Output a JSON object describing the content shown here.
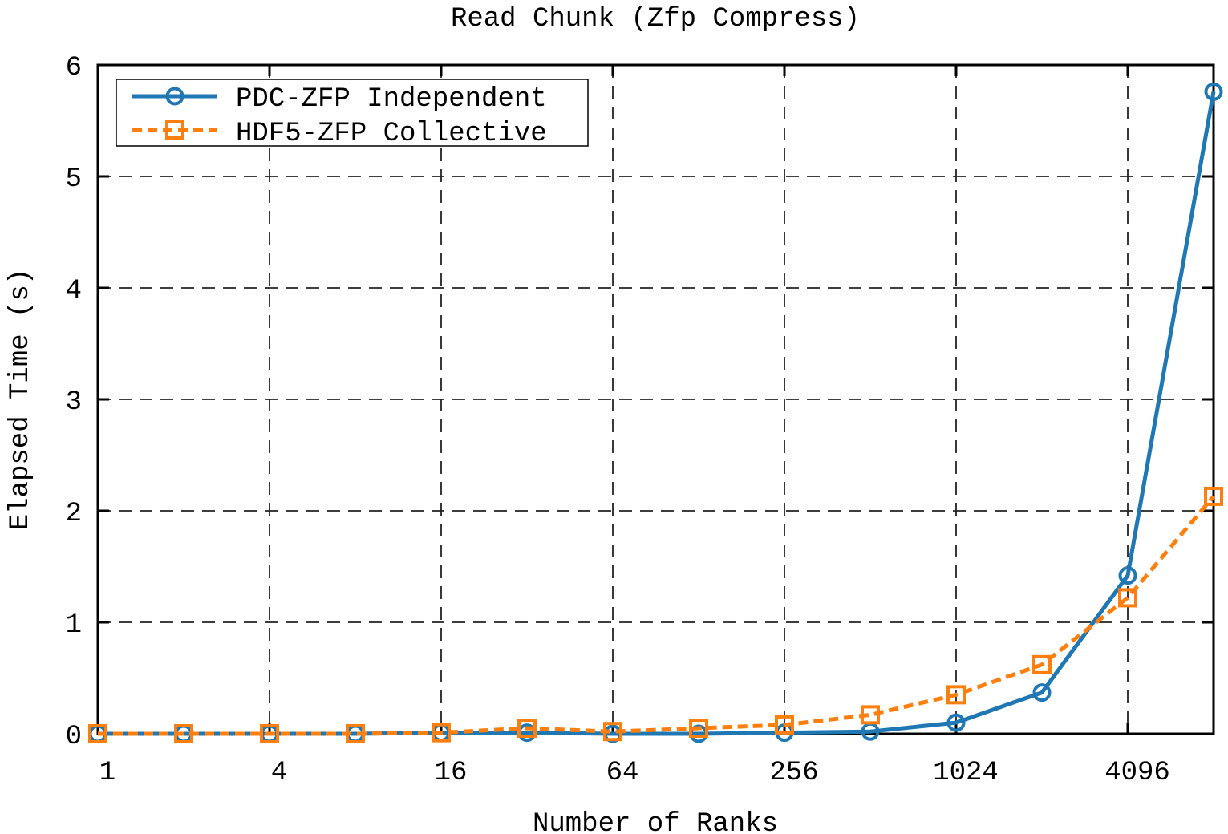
{
  "chart_data": {
    "type": "line",
    "title": "Read Chunk (Zfp Compress)",
    "xlabel": "Number of Ranks",
    "ylabel": "Elapsed Time (s)",
    "xscale": "log2",
    "x": [
      1,
      2,
      4,
      8,
      16,
      32,
      64,
      128,
      256,
      512,
      1024,
      2048,
      4096,
      8192
    ],
    "xticks": [
      1,
      4,
      16,
      64,
      256,
      1024,
      4096
    ],
    "xtick_labels": [
      "1",
      "4",
      "16",
      "64",
      "256",
      "1024",
      "4096"
    ],
    "ylim": [
      0,
      6
    ],
    "yticks": [
      0,
      1,
      2,
      3,
      4,
      5,
      6
    ],
    "ytick_labels": [
      "0",
      "1",
      "2",
      "3",
      "4",
      "5",
      "6"
    ],
    "grid": true,
    "legend_position": "top-left",
    "series": [
      {
        "name": "PDC-ZFP Independent",
        "color": "#1f77b4",
        "line_style": "solid",
        "marker": "circle",
        "values": [
          0.0,
          0.0,
          0.0,
          0.0,
          0.01,
          0.01,
          0.0,
          0.0,
          0.01,
          0.02,
          0.1,
          0.37,
          1.42,
          5.76
        ]
      },
      {
        "name": "HDF5-ZFP Collective",
        "color": "#ff7f0e",
        "line_style": "dashed",
        "marker": "square",
        "values": [
          0.0,
          0.0,
          0.0,
          0.0,
          0.01,
          0.05,
          0.02,
          0.05,
          0.08,
          0.17,
          0.35,
          0.62,
          1.22,
          2.13
        ]
      }
    ]
  }
}
